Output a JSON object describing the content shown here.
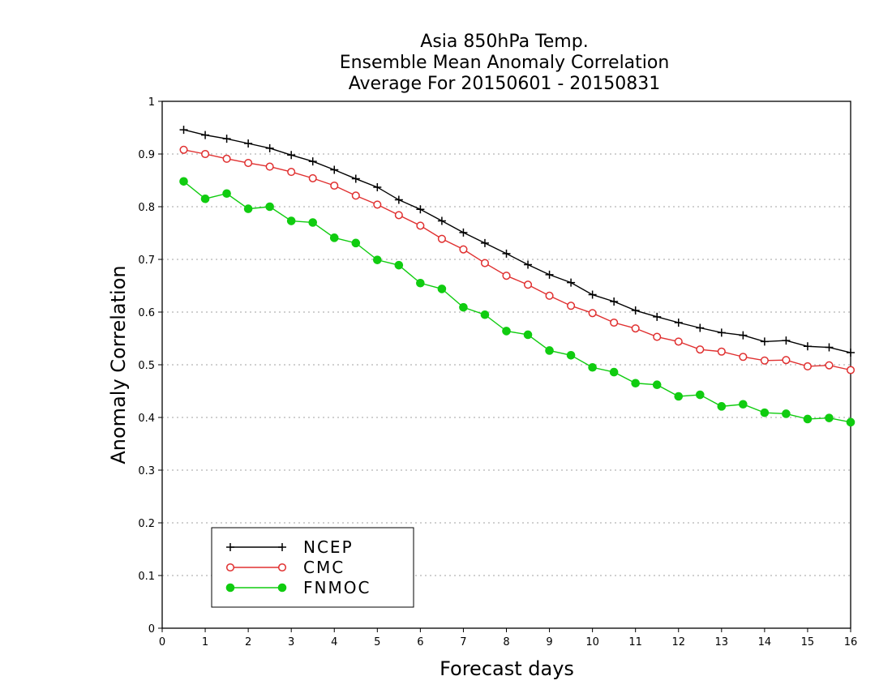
{
  "chart_data": {
    "type": "line",
    "title_lines": [
      "Asia 850hPa Temp.",
      "Ensemble Mean Anomaly Correlation",
      "Average For 20150601 - 20150831"
    ],
    "xlabel": "Forecast days",
    "ylabel": "Anomaly Correlation",
    "xlim": [
      0,
      16
    ],
    "ylim": [
      0,
      1
    ],
    "xticks": [
      0,
      1,
      2,
      3,
      4,
      5,
      6,
      7,
      8,
      9,
      10,
      11,
      12,
      13,
      14,
      15,
      16
    ],
    "yticks": [
      0,
      0.1,
      0.2,
      0.3,
      0.4,
      0.5,
      0.6,
      0.7,
      0.8,
      0.9,
      1
    ],
    "ytick_labels": [
      "0",
      "0.1",
      "0.2",
      "0.3",
      "0.4",
      "0.5",
      "0.6",
      "0.7",
      "0.8",
      "0.9",
      "1"
    ],
    "grid": "horizontal dotted",
    "legend_position": "bottom-left",
    "x": [
      0.5,
      1,
      1.5,
      2,
      2.5,
      3,
      3.5,
      4,
      4.5,
      5,
      5.5,
      6,
      6.5,
      7,
      7.5,
      8,
      8.5,
      9,
      9.5,
      10,
      10.5,
      11,
      11.5,
      12,
      12.5,
      13,
      13.5,
      14,
      14.5,
      15,
      15.5,
      16
    ],
    "series": [
      {
        "name": "NCEP",
        "color": "#000000",
        "marker": "plus",
        "values": [
          0.946,
          0.936,
          0.929,
          0.92,
          0.911,
          0.898,
          0.886,
          0.87,
          0.853,
          0.837,
          0.813,
          0.795,
          0.773,
          0.751,
          0.731,
          0.711,
          0.69,
          0.671,
          0.656,
          0.633,
          0.62,
          0.603,
          0.591,
          0.58,
          0.57,
          0.561,
          0.556,
          0.544,
          0.546,
          0.535,
          0.533,
          0.523
        ]
      },
      {
        "name": "CMC",
        "color": "#e03030",
        "marker": "open-circle",
        "values": [
          0.908,
          0.9,
          0.891,
          0.883,
          0.876,
          0.866,
          0.854,
          0.84,
          0.821,
          0.804,
          0.784,
          0.764,
          0.739,
          0.719,
          0.693,
          0.669,
          0.652,
          0.631,
          0.612,
          0.598,
          0.58,
          0.569,
          0.553,
          0.544,
          0.529,
          0.525,
          0.515,
          0.508,
          0.509,
          0.497,
          0.499,
          0.49
        ]
      },
      {
        "name": "FNMOC",
        "color": "#10cc10",
        "marker": "filled-circle",
        "values": [
          0.848,
          0.815,
          0.825,
          0.796,
          0.8,
          0.773,
          0.77,
          0.741,
          0.731,
          0.699,
          0.689,
          0.655,
          0.644,
          0.609,
          0.595,
          0.564,
          0.557,
          0.527,
          0.518,
          0.495,
          0.486,
          0.465,
          0.462,
          0.44,
          0.443,
          0.421,
          0.425,
          0.409,
          0.407,
          0.397,
          0.399,
          0.391
        ]
      }
    ]
  }
}
